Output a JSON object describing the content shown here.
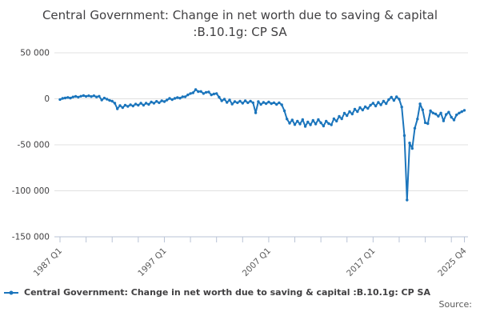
{
  "header": {
    "title": "Central Government: Change in net worth due to saving & capital :B.10.1g: CP SA"
  },
  "legend": {
    "label": "Central Government: Change in net worth due to saving & capital :B.10.1g: CP SA",
    "marker_color": "#1b75bc"
  },
  "footer": {
    "source_label": "Source:"
  },
  "chart_data": {
    "type": "line",
    "title": "Central Government: Change in net worth due to saving & capital :B.10.1g: CP SA",
    "frequency": "quarterly",
    "x_range": [
      "1987 Q1",
      "2025 Q4"
    ],
    "x_ticks": [
      {
        "index": 0,
        "label": "1987 Q1"
      },
      {
        "index": 40,
        "label": "1997 Q1"
      },
      {
        "index": 80,
        "label": "2007 Q1"
      },
      {
        "index": 120,
        "label": "2017 Q1"
      },
      {
        "index": 155,
        "label": "2025 Q4"
      }
    ],
    "minor_tick_every": 10,
    "y_ticks": [
      {
        "value": 50000,
        "label": "50 000"
      },
      {
        "value": 0,
        "label": "0"
      },
      {
        "value": -50000,
        "label": "-50 000"
      },
      {
        "value": -100000,
        "label": "-100 000"
      },
      {
        "value": -150000,
        "label": "-150 000"
      }
    ],
    "ylim": [
      -150000,
      50000
    ],
    "grid": "horizontal",
    "legend_position": "bottom-left",
    "line_color": "#1b75bc",
    "grid_color": "#e0e0e0",
    "axis_color": "#b9c3d6",
    "values": [
      -800,
      400,
      900,
      1500,
      800,
      2000,
      2600,
      1800,
      2800,
      3500,
      2600,
      3300,
      2400,
      3300,
      2000,
      2800,
      -1300,
      800,
      -400,
      -1700,
      -2600,
      -4800,
      -10900,
      -7400,
      -9600,
      -7000,
      -8300,
      -6500,
      -7800,
      -5700,
      -7000,
      -4800,
      -7000,
      -4800,
      -6100,
      -3500,
      -4800,
      -2800,
      -4300,
      -2200,
      -3000,
      -1300,
      400,
      -900,
      400,
      1300,
      700,
      2200,
      2200,
      4300,
      5700,
      6500,
      10000,
      7800,
      8000,
      5700,
      7000,
      7400,
      4300,
      5200,
      5700,
      1700,
      -2200,
      -400,
      -3900,
      -1300,
      -5700,
      -3000,
      -4300,
      -2600,
      -4800,
      -2200,
      -4300,
      -2600,
      -4300,
      -15200,
      -3000,
      -6100,
      -3900,
      -5200,
      -3500,
      -5200,
      -4300,
      -6100,
      -4300,
      -6500,
      -13000,
      -22000,
      -26500,
      -23000,
      -28000,
      -24300,
      -27400,
      -22600,
      -30000,
      -25200,
      -28300,
      -23500,
      -27400,
      -22600,
      -26100,
      -29600,
      -24300,
      -27000,
      -28300,
      -21700,
      -24300,
      -19100,
      -21700,
      -15600,
      -18300,
      -13900,
      -16500,
      -11300,
      -13900,
      -9600,
      -12200,
      -8700,
      -10400,
      -7000,
      -4800,
      -7800,
      -3900,
      -6500,
      -2600,
      -5200,
      -900,
      1700,
      -1700,
      2200,
      -400,
      -9000,
      -40000,
      -110000,
      -48000,
      -54000,
      -32000,
      -22000,
      -5500,
      -12000,
      -26000,
      -27000,
      -13000,
      -15500,
      -16500,
      -19000,
      -15500,
      -24000,
      -17000,
      -14500,
      -20000,
      -23000,
      -17500,
      -15500,
      -14000,
      -12500
    ]
  }
}
